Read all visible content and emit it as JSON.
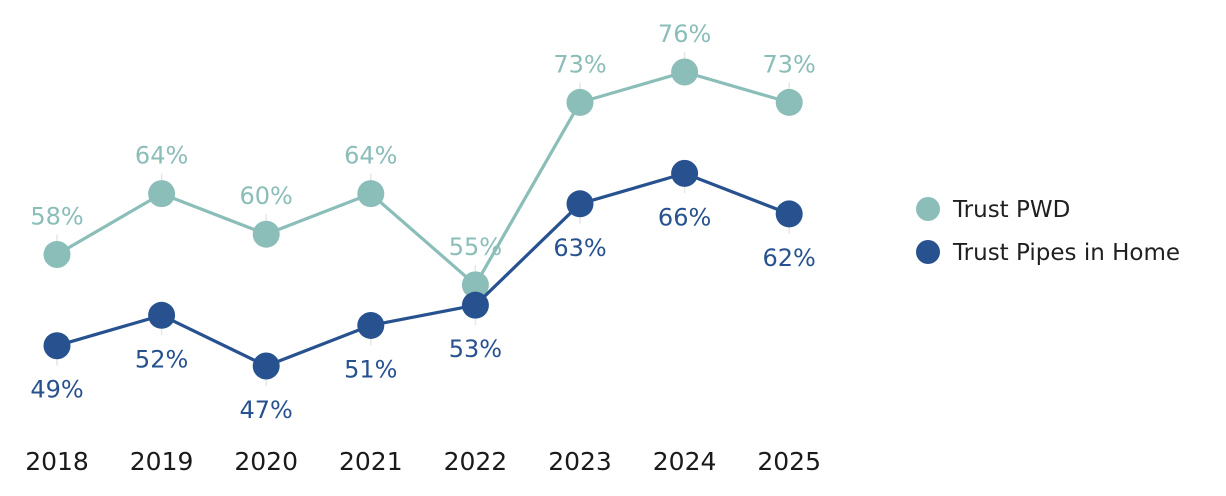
{
  "chart_data": {
    "type": "line",
    "title": "",
    "xlabel": "",
    "ylabel": "",
    "x": [
      "2018",
      "2019",
      "2020",
      "2021",
      "2022",
      "2023",
      "2024",
      "2025"
    ],
    "ylim": [
      40,
      80
    ],
    "grid": false,
    "legend_position": "right",
    "value_suffix": "%",
    "series": [
      {
        "name": "Trust PWD",
        "color": "#8bbdb9",
        "values": [
          58,
          64,
          60,
          64,
          55,
          73,
          76,
          73
        ],
        "labels": [
          "58%",
          "64%",
          "60%",
          "64%",
          "55%",
          "73%",
          "76%",
          "73%"
        ],
        "label_side": [
          "above",
          "above",
          "above",
          "above",
          "above",
          "above",
          "above",
          "above"
        ]
      },
      {
        "name": "Trust Pipes in Home",
        "color": "#27528f",
        "values": [
          49,
          52,
          47,
          51,
          53,
          63,
          66,
          62
        ],
        "labels": [
          "49%",
          "52%",
          "47%",
          "51%",
          "53%",
          "63%",
          "66%",
          "62%"
        ],
        "label_side": [
          "below",
          "below",
          "below",
          "below",
          "below",
          "below",
          "below",
          "below"
        ]
      }
    ]
  }
}
